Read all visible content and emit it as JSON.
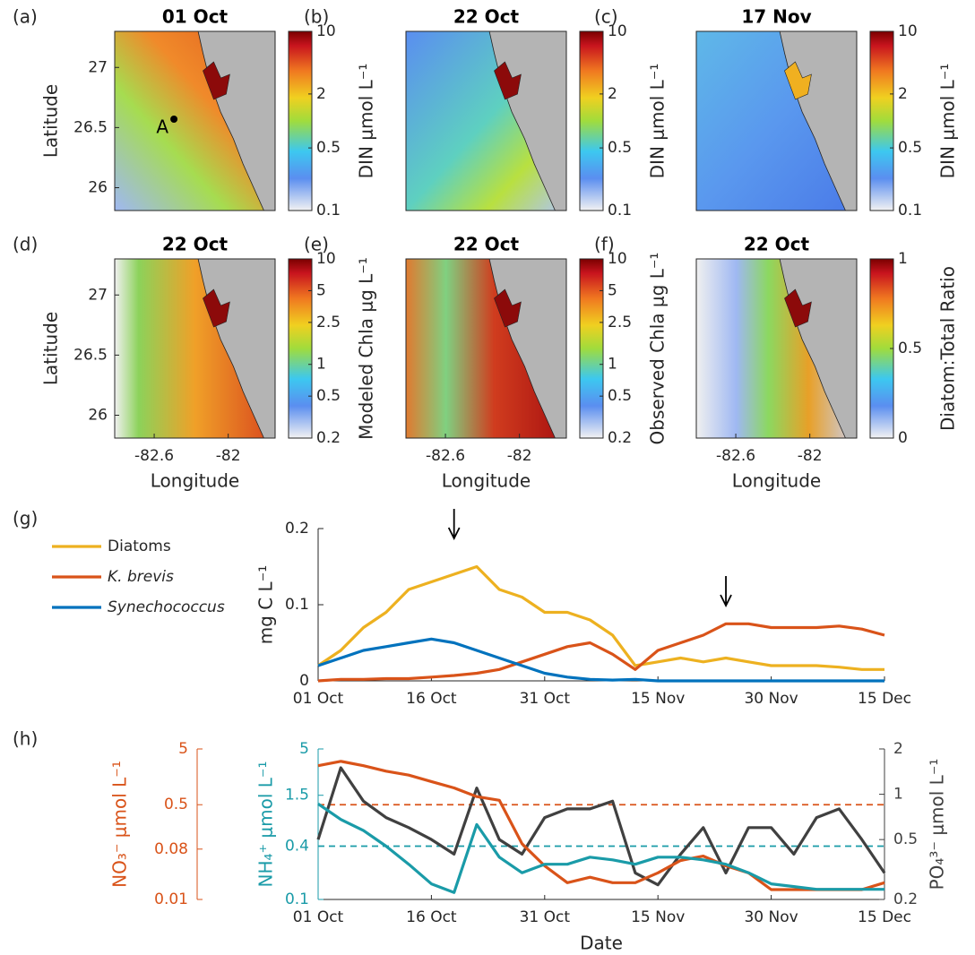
{
  "chart_data": [
    {
      "type": "map",
      "panel": "(a)",
      "title": "01 Oct",
      "xlim": [
        -82.92,
        -81.62
      ],
      "ylim": [
        25.81,
        27.3
      ],
      "yticks": [
        26,
        26.5,
        27
      ],
      "ylabel": "Latitude",
      "colorbar": {
        "label": "DIN μmol L⁻¹",
        "clim": [
          0.1,
          10
        ],
        "ticks": [
          0.1,
          0.5,
          2,
          10
        ],
        "log": true
      },
      "annotation": {
        "text": "A",
        "x": -82.44,
        "y": 26.57
      }
    },
    {
      "type": "map",
      "panel": "(b)",
      "title": "22 Oct",
      "xlim": [
        -82.92,
        -81.62
      ],
      "ylim": [
        25.81,
        27.3
      ],
      "colorbar": {
        "label": "DIN μmol L⁻¹",
        "clim": [
          0.1,
          10
        ],
        "ticks": [
          0.1,
          0.5,
          2,
          10
        ],
        "log": true
      }
    },
    {
      "type": "map",
      "panel": "(c)",
      "title": "17 Nov",
      "xlim": [
        -82.92,
        -81.62
      ],
      "ylim": [
        25.81,
        27.3
      ],
      "colorbar": {
        "label": "DIN μmol L⁻¹",
        "clim": [
          0.1,
          10
        ],
        "ticks": [
          0.1,
          0.5,
          2,
          10
        ],
        "log": true
      }
    },
    {
      "type": "map",
      "panel": "(d)",
      "title": "22 Oct",
      "xlim": [
        -82.92,
        -81.62
      ],
      "ylim": [
        25.81,
        27.3
      ],
      "xticks": [
        -82.6,
        -82
      ],
      "yticks": [
        26,
        26.5,
        27
      ],
      "xlabel": "Longitude",
      "ylabel": "Latitude",
      "colorbar": {
        "label": "Modeled Chla μg L⁻¹",
        "clim": [
          0.2,
          10
        ],
        "ticks": [
          0.2,
          0.5,
          1,
          2.5,
          5,
          10
        ],
        "log": true
      }
    },
    {
      "type": "map",
      "panel": "(e)",
      "title": "22 Oct",
      "xlim": [
        -82.92,
        -81.62
      ],
      "ylim": [
        25.81,
        27.3
      ],
      "xticks": [
        -82.6,
        -82
      ],
      "xlabel": "Longitude",
      "colorbar": {
        "label": "Observed Chla μg L⁻¹",
        "clim": [
          0.2,
          10
        ],
        "ticks": [
          0.2,
          0.5,
          1,
          2.5,
          5,
          10
        ],
        "log": true
      }
    },
    {
      "type": "map",
      "panel": "(f)",
      "title": "22 Oct",
      "xlim": [
        -82.92,
        -81.62
      ],
      "ylim": [
        25.81,
        27.3
      ],
      "xticks": [
        -82.6,
        -82
      ],
      "xlabel": "Longitude",
      "colorbar": {
        "label": "Diatom:Total Ratio",
        "clim": [
          0,
          1
        ],
        "ticks": [
          0,
          0.5,
          1
        ],
        "log": false
      }
    },
    {
      "type": "line",
      "panel": "(g)",
      "x": [
        0,
        3,
        6,
        9,
        12,
        15,
        18,
        21,
        24,
        27,
        30,
        33,
        36,
        39,
        42,
        45,
        48,
        51,
        54,
        57,
        60,
        63,
        66,
        69,
        72,
        75
      ],
      "xlim": [
        0,
        75
      ],
      "xticks": [
        {
          "value": 0,
          "label": "01 Oct"
        },
        {
          "value": 15,
          "label": "16 Oct"
        },
        {
          "value": 30,
          "label": "31 Oct"
        },
        {
          "value": 45,
          "label": "15 Nov"
        },
        {
          "value": 60,
          "label": "30 Nov"
        },
        {
          "value": 75,
          "label": "15 Dec"
        }
      ],
      "ylim": [
        0,
        0.2
      ],
      "yticks": [
        0,
        0.1,
        0.2
      ],
      "ylabel": "mg C L⁻¹",
      "arrows": [
        18,
        54
      ],
      "legend": "outside-left",
      "series": [
        {
          "name": "Diatoms",
          "color": "#EDB120",
          "values": [
            0.02,
            0.04,
            0.07,
            0.09,
            0.12,
            0.13,
            0.14,
            0.15,
            0.12,
            0.11,
            0.09,
            0.09,
            0.08,
            0.06,
            0.02,
            0.025,
            0.03,
            0.025,
            0.03,
            0.025,
            0.02,
            0.02,
            0.02,
            0.018,
            0.015,
            0.015
          ]
        },
        {
          "name": "K. brevis",
          "color": "#D95319",
          "values": [
            0,
            0.002,
            0.002,
            0.003,
            0.003,
            0.005,
            0.007,
            0.01,
            0.015,
            0.025,
            0.035,
            0.045,
            0.05,
            0.035,
            0.015,
            0.04,
            0.05,
            0.06,
            0.075,
            0.075,
            0.07,
            0.07,
            0.07,
            0.072,
            0.068,
            0.06
          ]
        },
        {
          "name": "Synechococcus",
          "color": "#0072BD",
          "values": [
            0.02,
            0.03,
            0.04,
            0.045,
            0.05,
            0.055,
            0.05,
            0.04,
            0.03,
            0.02,
            0.01,
            0.005,
            0.002,
            0.001,
            0.002,
            0,
            0,
            0,
            0,
            0,
            0,
            0,
            0,
            0,
            0,
            0
          ]
        }
      ]
    },
    {
      "type": "line",
      "panel": "(h)",
      "x": [
        0,
        3,
        6,
        9,
        12,
        15,
        18,
        21,
        24,
        27,
        30,
        33,
        36,
        39,
        42,
        45,
        48,
        51,
        54,
        57,
        60,
        63,
        66,
        69,
        72,
        75
      ],
      "xlim": [
        0,
        75
      ],
      "xticks": [
        {
          "value": 0,
          "label": "01 Oct"
        },
        {
          "value": 15,
          "label": "16 Oct"
        },
        {
          "value": 30,
          "label": "31 Oct"
        },
        {
          "value": 45,
          "label": "15 Nov"
        },
        {
          "value": 60,
          "label": "30 Nov"
        },
        {
          "value": 75,
          "label": "15 Dec"
        }
      ],
      "xlabel": "Date",
      "ylim": [
        0.1,
        5
      ],
      "yticks": [
        0.1,
        0.4,
        1.5,
        5
      ],
      "ylabel": "NH₄⁺ μmol L⁻¹",
      "ylog": true,
      "y2lim": [
        0.2,
        2
      ],
      "y2ticks": [
        0.2,
        0.5,
        1,
        2
      ],
      "y2label": "PO₄³⁻ μmol L⁻¹",
      "y2log": true,
      "y3lim": [
        0.01,
        5
      ],
      "y3ticks": [
        0.01,
        0.08,
        0.5,
        5
      ],
      "y3label": "NO₃⁻ μmol L⁻¹",
      "y3log": true,
      "reference_lines": [
        {
          "axis": "y3",
          "value": 0.5,
          "color": "#D95319"
        },
        {
          "axis": "y",
          "value": 0.4,
          "color": "#1A9BA8"
        }
      ],
      "series": [
        {
          "color": "#404040",
          "axis": "y2",
          "values": [
            0.5,
            1.5,
            0.9,
            0.7,
            0.6,
            0.5,
            0.4,
            1.1,
            0.5,
            0.4,
            0.7,
            0.8,
            0.8,
            0.9,
            0.3,
            0.25,
            0.4,
            0.6,
            0.3,
            0.6,
            0.6,
            0.4,
            0.7,
            0.8,
            0.5,
            0.3
          ]
        },
        {
          "color": "#D95319",
          "axis": "y3",
          "values": [
            2.5,
            3,
            2.5,
            2,
            1.7,
            1.3,
            1,
            0.7,
            0.6,
            0.1,
            0.04,
            0.02,
            0.025,
            0.02,
            0.02,
            0.03,
            0.05,
            0.06,
            0.04,
            0.03,
            0.015,
            0.015,
            0.015,
            0.015,
            0.015,
            0.02
          ]
        },
        {
          "color": "#1A9BA8",
          "axis": "y",
          "values": [
            1.2,
            0.8,
            0.6,
            0.4,
            0.25,
            0.15,
            0.12,
            0.7,
            0.3,
            0.2,
            0.25,
            0.25,
            0.3,
            0.28,
            0.25,
            0.3,
            0.3,
            0.28,
            0.25,
            0.2,
            0.15,
            0.14,
            0.13,
            0.13,
            0.13,
            0.13
          ]
        }
      ]
    }
  ]
}
